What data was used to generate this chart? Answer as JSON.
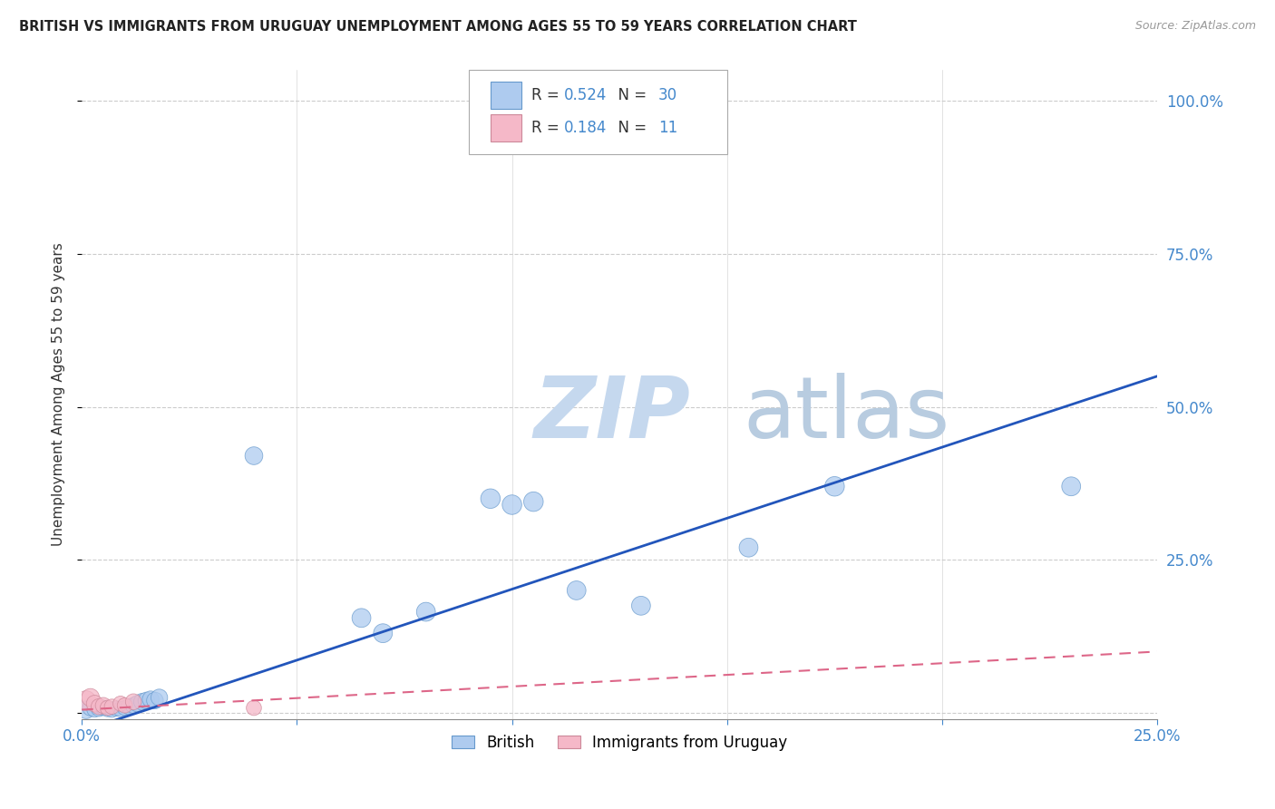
{
  "title": "BRITISH VS IMMIGRANTS FROM URUGUAY UNEMPLOYMENT AMONG AGES 55 TO 59 YEARS CORRELATION CHART",
  "source": "Source: ZipAtlas.com",
  "ylabel": "Unemployment Among Ages 55 to 59 years",
  "watermark_zip": "ZIP",
  "watermark_atlas": "atlas",
  "british_x": [
    0.001,
    0.002,
    0.003,
    0.004,
    0.005,
    0.006,
    0.007,
    0.008,
    0.009,
    0.01,
    0.011,
    0.012,
    0.013,
    0.014,
    0.015,
    0.016,
    0.017,
    0.018,
    0.04,
    0.065,
    0.07,
    0.08,
    0.095,
    0.1,
    0.105,
    0.115,
    0.13,
    0.155,
    0.175,
    0.23
  ],
  "british_y": [
    0.005,
    0.008,
    0.006,
    0.007,
    0.008,
    0.006,
    0.005,
    0.007,
    0.006,
    0.008,
    0.01,
    0.012,
    0.015,
    0.018,
    0.02,
    0.022,
    0.02,
    0.025,
    0.42,
    0.155,
    0.13,
    0.165,
    0.35,
    0.34,
    0.345,
    0.2,
    0.175,
    0.27,
    0.37,
    0.37
  ],
  "british_sizes": [
    25,
    20,
    20,
    20,
    18,
    18,
    18,
    18,
    18,
    18,
    20,
    20,
    22,
    22,
    22,
    22,
    22,
    22,
    25,
    28,
    28,
    28,
    30,
    30,
    30,
    28,
    28,
    28,
    30,
    28
  ],
  "uruguay_x": [
    0.001,
    0.002,
    0.003,
    0.004,
    0.005,
    0.006,
    0.007,
    0.009,
    0.01,
    0.012,
    0.04
  ],
  "uruguay_y": [
    0.02,
    0.025,
    0.015,
    0.01,
    0.012,
    0.008,
    0.01,
    0.015,
    0.012,
    0.018,
    0.008
  ],
  "uruguay_sizes": [
    30,
    25,
    22,
    20,
    20,
    18,
    18,
    18,
    18,
    20,
    18
  ],
  "british_R": 0.524,
  "british_N": 30,
  "uruguay_R": 0.184,
  "uruguay_N": 11,
  "xlim": [
    0.0,
    0.25
  ],
  "ylim": [
    -0.01,
    1.05
  ],
  "xticks": [
    0.0,
    0.05,
    0.1,
    0.15,
    0.2,
    0.25
  ],
  "yticks": [
    0.0,
    0.25,
    0.5,
    0.75,
    1.0
  ],
  "xticklabels": [
    "0.0%",
    "",
    "",
    "",
    "",
    "25.0%"
  ],
  "yticklabels_right": [
    "",
    "25.0%",
    "50.0%",
    "75.0%",
    "100.0%"
  ],
  "british_color": "#aecbef",
  "british_edge_color": "#6699cc",
  "british_line_color": "#2255bb",
  "uruguay_color": "#f5b8c8",
  "uruguay_edge_color": "#cc8899",
  "uruguay_line_color": "#dd6688",
  "grid_color": "#cccccc",
  "title_color": "#222222",
  "source_color": "#999999",
  "tick_color": "#4488cc",
  "watermark_color_zip": "#c5d8ee",
  "watermark_color_atlas": "#b8cce0"
}
